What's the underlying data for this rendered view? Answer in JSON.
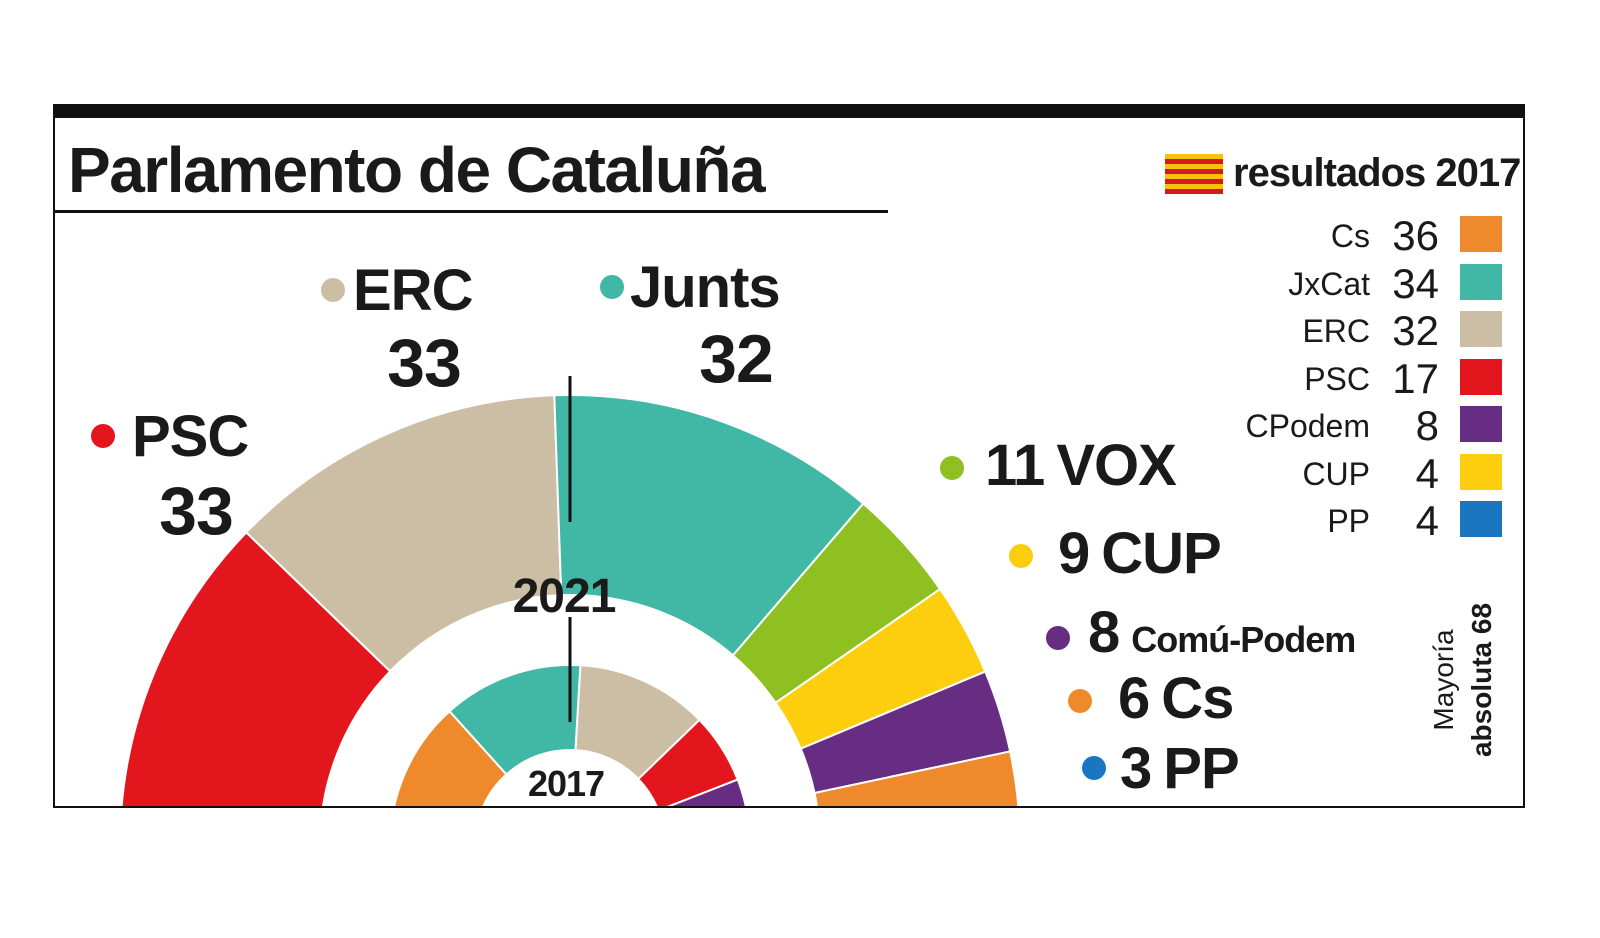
{
  "title": "Parlamento de Cataluña",
  "legend": {
    "title": "resultados 2017",
    "items": [
      {
        "name": "Cs",
        "value": "36",
        "color": "#ee8a2c"
      },
      {
        "name": "JxCat",
        "value": "34",
        "color": "#41b7a6"
      },
      {
        "name": "ERC",
        "value": "32",
        "color": "#cbbea4"
      },
      {
        "name": "PSC",
        "value": "17",
        "color": "#e3161d"
      },
      {
        "name": "CPodem",
        "value": "8",
        "color": "#662d83"
      },
      {
        "name": "CUP",
        "value": "4",
        "color": "#fcce0d"
      },
      {
        "name": "PP",
        "value": "4",
        "color": "#1a76c0"
      }
    ]
  },
  "majority": {
    "line1": "Mayoría",
    "line2": "absoluta 68"
  },
  "chart_data": [
    {
      "type": "pie",
      "subtype": "parliament-hemicycle",
      "label": "2021",
      "order": "left-to-right",
      "total_seats": 135,
      "series": [
        {
          "name": "PSC",
          "value": 33,
          "color": "#e3161d"
        },
        {
          "name": "ERC",
          "value": 33,
          "color": "#cbbea4"
        },
        {
          "name": "Junts",
          "value": 32,
          "color": "#41b7a6"
        },
        {
          "name": "VOX",
          "value": 11,
          "color": "#8dc020"
        },
        {
          "name": "CUP",
          "value": 9,
          "color": "#fcce0d"
        },
        {
          "name": "Comú-Podem",
          "value": 8,
          "color": "#662d83"
        },
        {
          "name": "Cs",
          "value": 6,
          "color": "#ee8a2c"
        },
        {
          "name": "PP",
          "value": 3,
          "color": "#1a76c0"
        }
      ]
    },
    {
      "type": "pie",
      "subtype": "parliament-hemicycle",
      "label": "2017",
      "order": "left-to-right",
      "total_seats": 135,
      "series": [
        {
          "name": "Cs",
          "value": 36,
          "color": "#ee8a2c"
        },
        {
          "name": "JxCat",
          "value": 34,
          "color": "#41b7a6"
        },
        {
          "name": "ERC",
          "value": 32,
          "color": "#cbbea4"
        },
        {
          "name": "PSC",
          "value": 17,
          "color": "#e3161d"
        },
        {
          "name": "CPodem",
          "value": 8,
          "color": "#662d83"
        },
        {
          "name": "CUP",
          "value": 4,
          "color": "#fcce0d"
        },
        {
          "name": "PP",
          "value": 4,
          "color": "#1a76c0"
        }
      ]
    }
  ],
  "labels_2021": [
    {
      "name": "PSC",
      "value": "33"
    },
    {
      "name": "ERC",
      "value": "33"
    },
    {
      "name": "Junts",
      "value": "32"
    },
    {
      "name": "VOX",
      "value": "11"
    },
    {
      "name": "CUP",
      "value": "9"
    },
    {
      "name": "Comú-Podem",
      "value": "8"
    },
    {
      "name": "Cs",
      "value": "6"
    },
    {
      "name": "PP",
      "value": "3"
    }
  ]
}
